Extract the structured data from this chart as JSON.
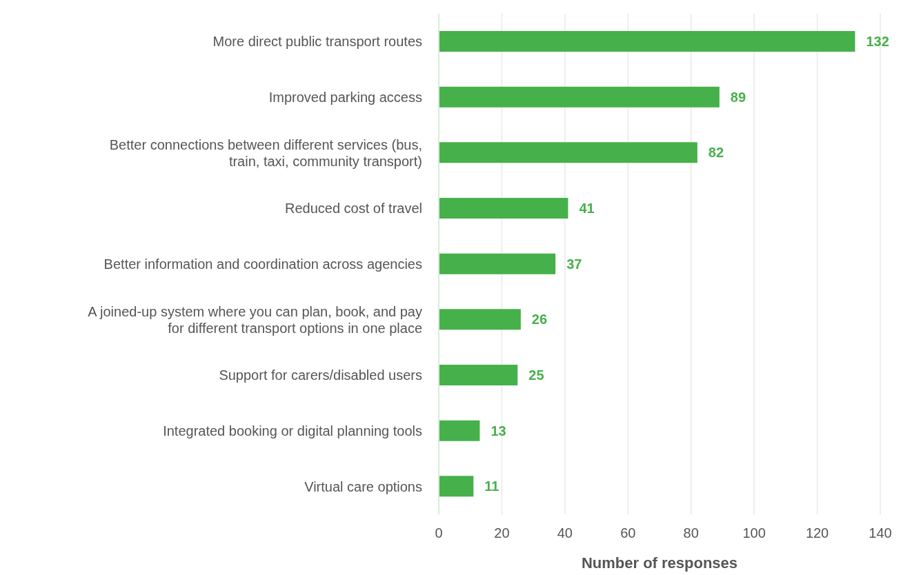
{
  "chart_data": {
    "type": "bar",
    "orientation": "horizontal",
    "xlabel": "Number of responses",
    "categories": [
      "More direct public transport routes",
      "Improved parking access",
      "Better connections between different services (bus, train, taxi, community transport)",
      "Reduced cost of travel",
      "Better information and coordination across agencies",
      "A joined-up system where you can plan, book, and pay for different transport options in one place",
      "Support for carers/disabled users",
      "Integrated booking or digital planning tools",
      "Virtual care options"
    ],
    "values": [
      132,
      89,
      82,
      41,
      37,
      26,
      25,
      13,
      11
    ],
    "color": "#46b04a",
    "xlim": [
      0,
      140
    ],
    "xticks": [
      0,
      20,
      40,
      60,
      80,
      100,
      120,
      140
    ],
    "grid": "x",
    "legend": false,
    "data_labels": true
  }
}
